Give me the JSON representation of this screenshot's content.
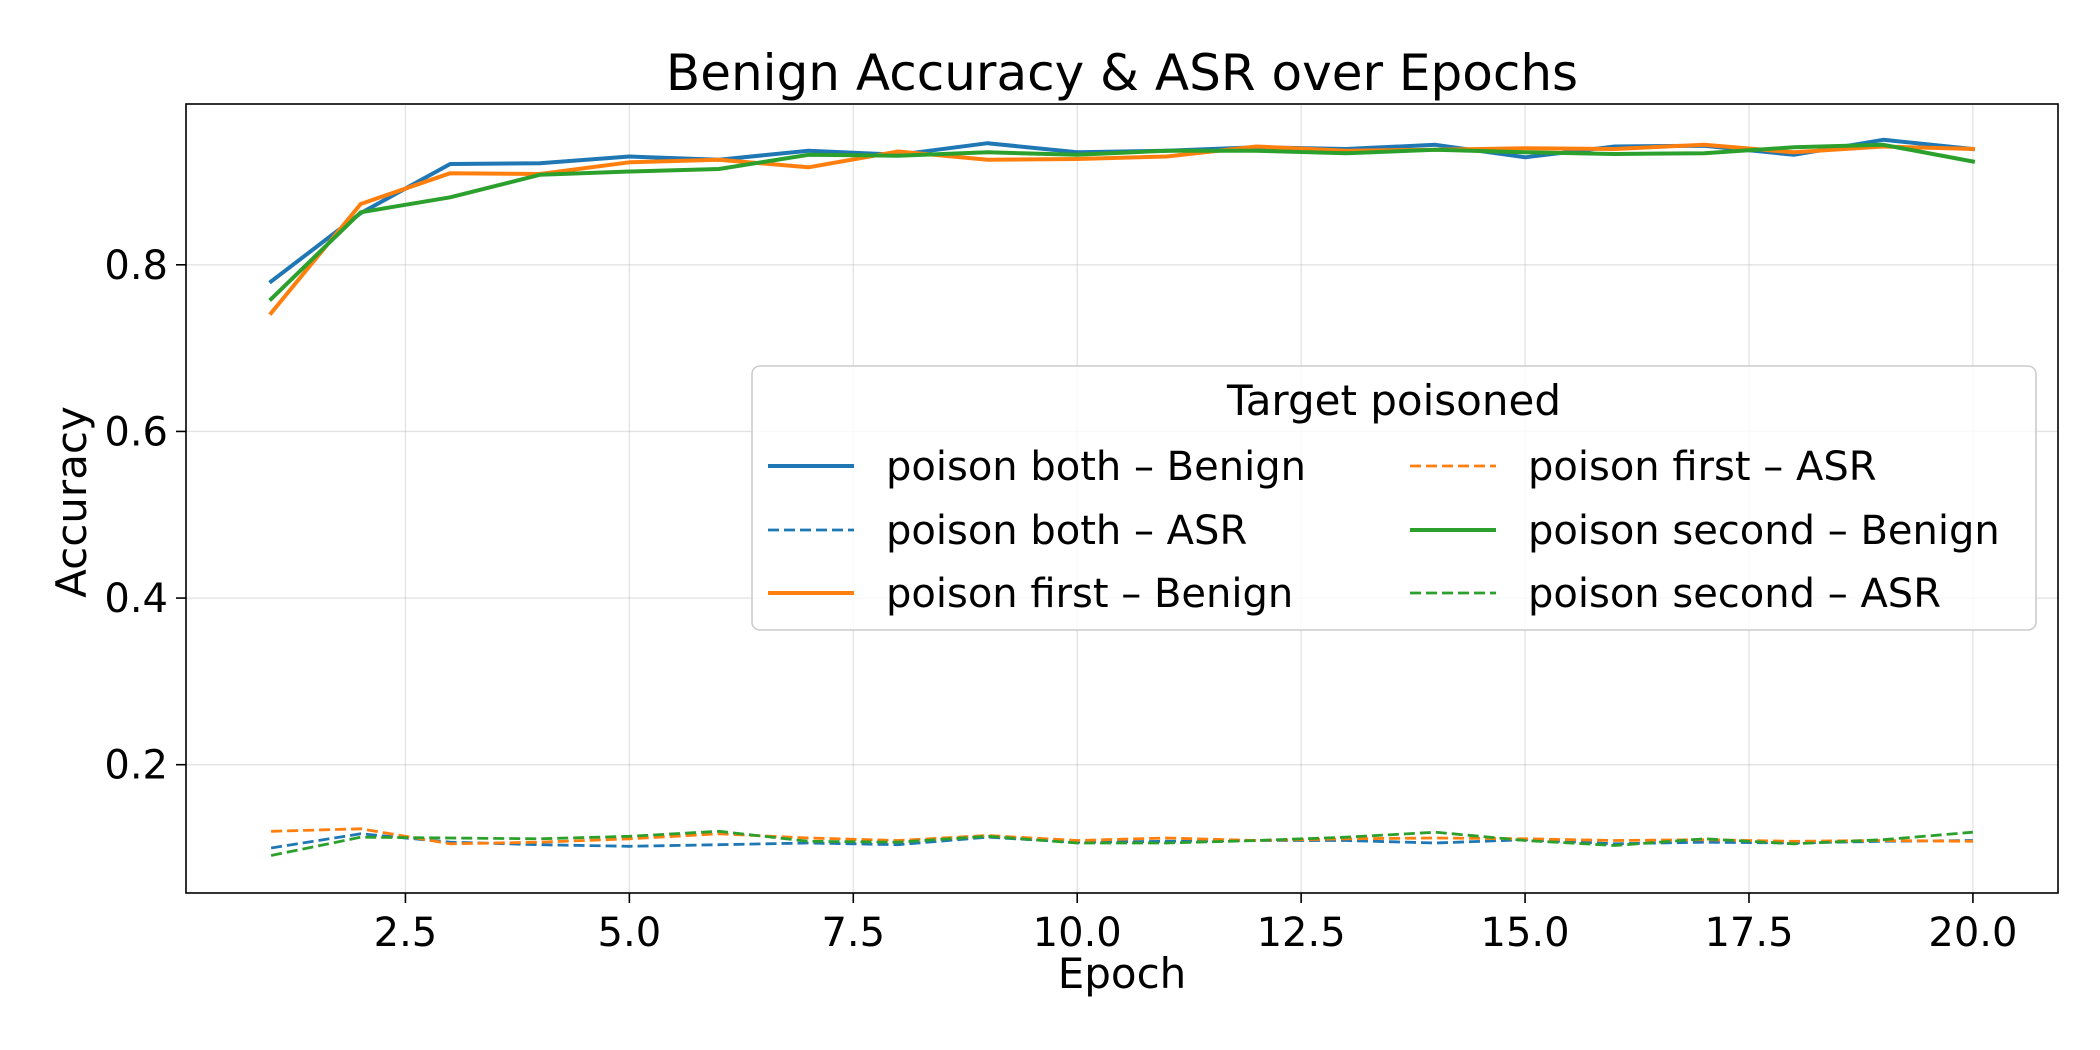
{
  "chart_data": {
    "type": "line",
    "title": "Benign Accuracy & ASR over Epochs",
    "xlabel": "Epoch",
    "ylabel": "Accuracy",
    "xlim": [
      0.05,
      20.95
    ],
    "ylim": [
      0.046,
      0.993
    ],
    "xticks": [
      2.5,
      5.0,
      7.5,
      10.0,
      12.5,
      15.0,
      17.5,
      20.0
    ],
    "xtick_labels": [
      "2.5",
      "5.0",
      "7.5",
      "10.0",
      "12.5",
      "15.0",
      "17.5",
      "20.0"
    ],
    "yticks": [
      0.2,
      0.4,
      0.6,
      0.8
    ],
    "ytick_labels": [
      "0.2",
      "0.4",
      "0.6",
      "0.8"
    ],
    "grid": true,
    "legend": {
      "title": "Target poisoned",
      "placement": "center-right",
      "columns": 2
    },
    "x": [
      1,
      2,
      3,
      4,
      5,
      6,
      7,
      8,
      9,
      10,
      11,
      12,
      13,
      14,
      15,
      16,
      17,
      18,
      19,
      20
    ],
    "series": [
      {
        "name": "poison both – Benign",
        "color": "#1f77b4",
        "style": "solid",
        "values": [
          0.78,
          0.862,
          0.921,
          0.922,
          0.93,
          0.926,
          0.937,
          0.932,
          0.946,
          0.935,
          0.937,
          0.941,
          0.939,
          0.944,
          0.929,
          0.942,
          0.943,
          0.932,
          0.95,
          0.939
        ]
      },
      {
        "name": "poison both – ASR",
        "color": "#1f77b4",
        "style": "dashed",
        "values": [
          0.1,
          0.117,
          0.107,
          0.104,
          0.102,
          0.104,
          0.106,
          0.104,
          0.113,
          0.107,
          0.108,
          0.109,
          0.109,
          0.106,
          0.11,
          0.105,
          0.107,
          0.106,
          0.108,
          0.109
        ]
      },
      {
        "name": "poison first – Benign",
        "color": "#ff7f0e",
        "style": "solid",
        "values": [
          0.742,
          0.873,
          0.91,
          0.909,
          0.923,
          0.926,
          0.917,
          0.936,
          0.926,
          0.927,
          0.93,
          0.942,
          0.937,
          0.938,
          0.94,
          0.939,
          0.944,
          0.935,
          0.942,
          0.939
        ]
      },
      {
        "name": "poison first – ASR",
        "color": "#ff7f0e",
        "style": "dashed",
        "values": [
          0.12,
          0.123,
          0.105,
          0.107,
          0.111,
          0.117,
          0.112,
          0.109,
          0.115,
          0.109,
          0.112,
          0.109,
          0.111,
          0.112,
          0.111,
          0.109,
          0.11,
          0.108,
          0.109,
          0.108
        ]
      },
      {
        "name": "poison second – Benign",
        "color": "#2ca02c",
        "style": "solid",
        "values": [
          0.759,
          0.863,
          0.881,
          0.908,
          0.912,
          0.915,
          0.932,
          0.931,
          0.935,
          0.932,
          0.937,
          0.937,
          0.934,
          0.938,
          0.935,
          0.933,
          0.934,
          0.941,
          0.944,
          0.924
        ]
      },
      {
        "name": "poison second – ASR",
        "color": "#2ca02c",
        "style": "dashed",
        "values": [
          0.091,
          0.113,
          0.112,
          0.111,
          0.114,
          0.12,
          0.108,
          0.107,
          0.114,
          0.106,
          0.106,
          0.109,
          0.113,
          0.119,
          0.109,
          0.103,
          0.111,
          0.105,
          0.11,
          0.119
        ]
      }
    ]
  }
}
